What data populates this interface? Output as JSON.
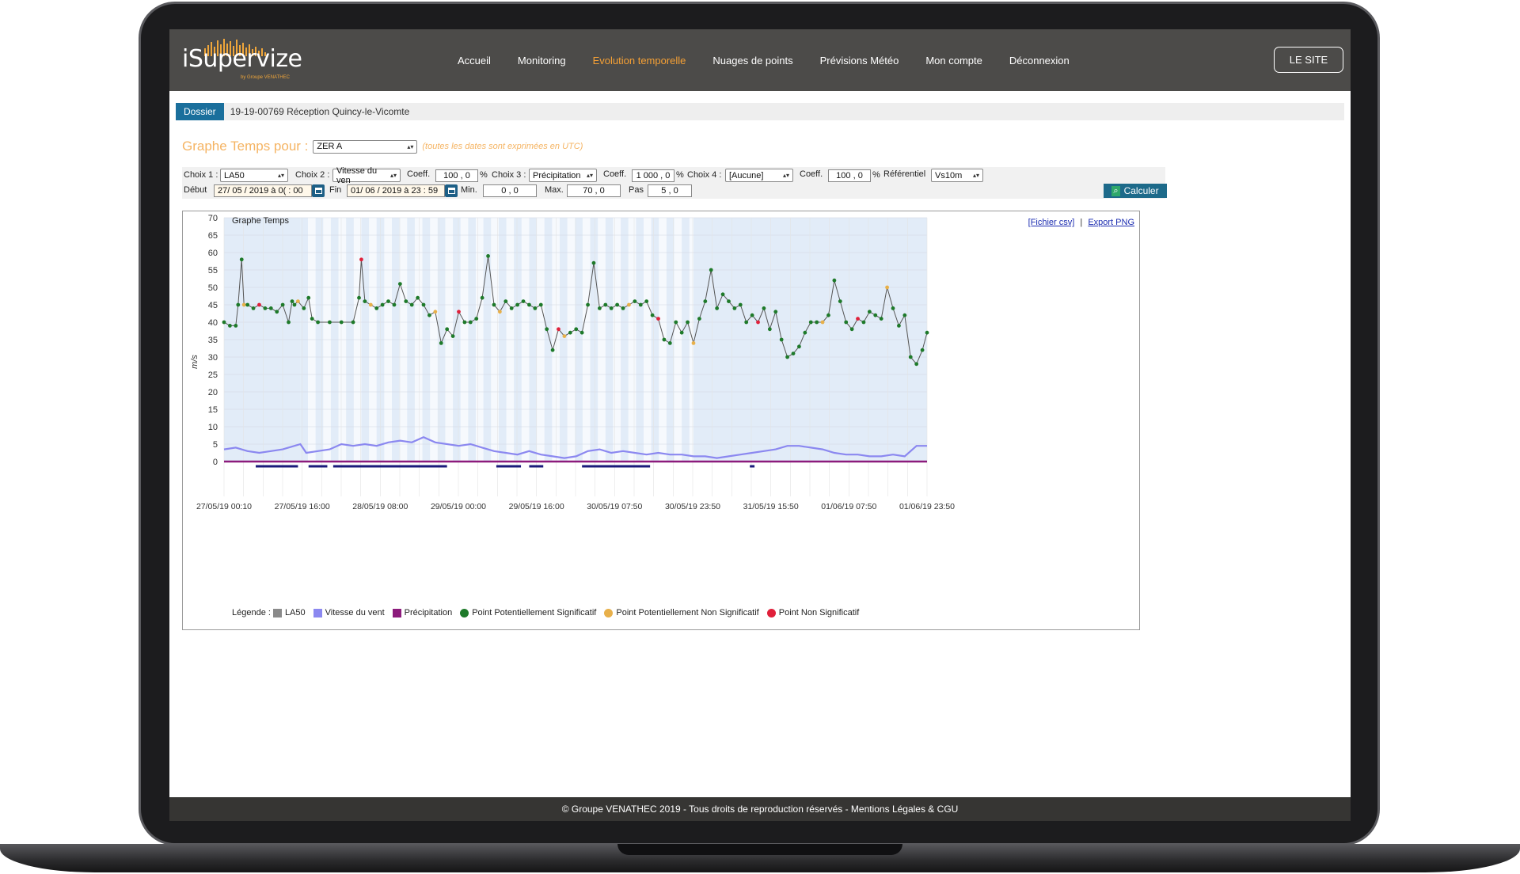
{
  "nav": {
    "logo": "iSupervize",
    "logo_sub": "by Groupe VENATHEC",
    "items": [
      {
        "label": "Accueil",
        "active": false
      },
      {
        "label": "Monitoring",
        "active": false
      },
      {
        "label": "Evolution temporelle",
        "active": true
      },
      {
        "label": "Nuages de points",
        "active": false
      },
      {
        "label": "Prévisions Météo",
        "active": false
      },
      {
        "label": "Mon compte",
        "active": false
      },
      {
        "label": "Déconnexion",
        "active": false
      }
    ],
    "site_button": "LE SITE",
    "accent": "#f5a035"
  },
  "dossier": {
    "label": "Dossier",
    "value": "19-19-00769 Réception Quincy-le-Vicomte"
  },
  "graph_header": {
    "title": "Graphe Temps pour :",
    "zone": "ZER A",
    "utc_note": "(toutes les dates sont exprimées en UTC)"
  },
  "controls": {
    "choix1_label": "Choix 1 :",
    "choix1": "LA50",
    "choix2_label": "Choix 2 :",
    "choix2": "Vitesse du ven",
    "coeff_label": "Coeff.",
    "coeff1": "100 , 0",
    "pct": "%",
    "choix3_label": "Choix 3 :",
    "choix3": "Précipitation",
    "coeff3": "1 000 , 0",
    "choix4_label": "Choix 4 :",
    "choix4": "[Aucune]",
    "coeff4": "100 , 0",
    "referentiel_label": "Référentiel",
    "referentiel": "Vs10m",
    "debut_label": "Début",
    "debut": "27/ 05 / 2019  à 0( : 00",
    "fin_label": "Fin",
    "fin": "01/ 06 / 2019  à 23 : 59",
    "min_label": "Min.",
    "min": "0 , 0",
    "max_label": "Max.",
    "max": "70 , 0",
    "pas_label": "Pas",
    "pas": "5 , 0",
    "calc_button": "Calculer"
  },
  "chart_links": {
    "csv": "[Fichier csv]",
    "sep": "|",
    "png": "Export PNG"
  },
  "legend": {
    "prefix": "Légende :",
    "items": [
      {
        "label": "LA50",
        "color": "#8a8a8a",
        "shape": "square"
      },
      {
        "label": "Vitesse du vent",
        "color": "#8b88f0",
        "shape": "square"
      },
      {
        "label": "Précipitation",
        "color": "#8c1b7c",
        "shape": "square"
      },
      {
        "label": "Point Potentiellement Significatif",
        "color": "#1e7a2a",
        "shape": "dot"
      },
      {
        "label": "Point Potentiellement Non Significatif",
        "color": "#e8b04a",
        "shape": "dot"
      },
      {
        "label": "Point Non Significatif",
        "color": "#e0203a",
        "shape": "dot"
      }
    ]
  },
  "chart_data": {
    "type": "line",
    "title": "Graphe Temps",
    "ylabel": "m/s",
    "ylim": [
      0,
      70
    ],
    "yticks": [
      0,
      5,
      10,
      15,
      20,
      25,
      30,
      35,
      40,
      45,
      50,
      55,
      60,
      65,
      70
    ],
    "xlim": [
      0,
      5.99
    ],
    "x_unit": "days from 27/05/19 00:10",
    "xtick_labels": [
      "27/05/19 00:10",
      "27/05/19 16:00",
      "28/05/19 08:00",
      "29/05/19 00:00",
      "29/05/19 16:00",
      "30/05/19 07:50",
      "30/05/19 23:50",
      "31/05/19 15:50",
      "01/06/19 07:50",
      "01/06/19 23:50"
    ],
    "grid": true,
    "legend_position": "bottom",
    "night_bands": [
      [
        0,
        0.65
      ],
      [
        4.0,
        5.99
      ]
    ],
    "series": [
      {
        "name": "LA50",
        "color": "#555555",
        "x": [
          0,
          0.05,
          0.1,
          0.12,
          0.15,
          0.17,
          0.2,
          0.25,
          0.3,
          0.35,
          0.4,
          0.45,
          0.5,
          0.55,
          0.58,
          0.6,
          0.63,
          0.68,
          0.72,
          0.75,
          0.8,
          0.9,
          1.0,
          1.1,
          1.15,
          1.17,
          1.2,
          1.25,
          1.3,
          1.35,
          1.4,
          1.45,
          1.5,
          1.55,
          1.6,
          1.65,
          1.7,
          1.75,
          1.8,
          1.85,
          1.9,
          1.95,
          2.0,
          2.05,
          2.1,
          2.15,
          2.2,
          2.25,
          2.3,
          2.35,
          2.4,
          2.45,
          2.5,
          2.55,
          2.6,
          2.65,
          2.7,
          2.75,
          2.8,
          2.85,
          2.9,
          2.95,
          3.0,
          3.05,
          3.1,
          3.15,
          3.2,
          3.25,
          3.3,
          3.35,
          3.4,
          3.45,
          3.5,
          3.55,
          3.6,
          3.65,
          3.7,
          3.75,
          3.8,
          3.85,
          3.9,
          3.95,
          4.0,
          4.05,
          4.1,
          4.15,
          4.2,
          4.25,
          4.3,
          4.35,
          4.4,
          4.45,
          4.5,
          4.55,
          4.6,
          4.65,
          4.7,
          4.75,
          4.8,
          4.85,
          4.9,
          4.95,
          5.0,
          5.05,
          5.1,
          5.15,
          5.2,
          5.25,
          5.3,
          5.35,
          5.4,
          5.45,
          5.5,
          5.55,
          5.6,
          5.65,
          5.7,
          5.75,
          5.8,
          5.85,
          5.9,
          5.95,
          5.99
        ],
        "values": [
          40,
          39,
          39,
          45,
          58,
          45,
          45,
          44,
          45,
          44,
          44,
          43,
          45,
          40,
          46,
          45,
          46,
          44,
          47,
          41,
          40,
          40,
          40,
          40,
          47,
          58,
          46,
          45,
          44,
          45,
          46,
          45,
          51,
          46,
          45,
          47,
          45,
          42,
          43,
          34,
          38,
          36,
          43,
          40,
          40,
          41,
          47,
          59,
          45,
          43,
          46,
          44,
          45,
          46,
          45,
          44,
          45,
          38,
          32,
          38,
          36,
          37,
          38,
          37,
          45,
          57,
          44,
          45,
          44,
          45,
          44,
          45,
          46,
          45,
          46,
          42,
          41,
          35,
          34,
          40,
          37,
          40,
          34,
          41,
          46,
          55,
          44,
          48,
          46,
          44,
          45,
          40,
          42,
          40,
          44,
          38,
          43,
          35,
          30,
          31,
          33,
          37,
          40,
          40,
          40,
          42,
          52,
          46,
          40,
          38,
          41,
          40,
          43,
          42,
          41,
          50,
          44,
          39,
          42,
          30,
          28,
          32,
          37
        ]
      },
      {
        "name": "Vitesse du vent",
        "color": "#8b88f0",
        "x": [
          0,
          0.1,
          0.2,
          0.3,
          0.4,
          0.5,
          0.6,
          0.65,
          0.7,
          0.8,
          0.9,
          1.0,
          1.1,
          1.2,
          1.3,
          1.4,
          1.5,
          1.6,
          1.7,
          1.8,
          1.9,
          2.0,
          2.1,
          2.2,
          2.3,
          2.4,
          2.5,
          2.6,
          2.7,
          2.8,
          2.9,
          3.0,
          3.1,
          3.2,
          3.3,
          3.4,
          3.5,
          3.6,
          3.7,
          3.8,
          3.9,
          4.0,
          4.1,
          4.2,
          4.3,
          4.4,
          4.5,
          4.6,
          4.7,
          4.8,
          4.9,
          5.0,
          5.1,
          5.2,
          5.3,
          5.4,
          5.5,
          5.6,
          5.7,
          5.8,
          5.9,
          5.99
        ],
        "values": [
          3.5,
          4.0,
          3.0,
          2.5,
          3.0,
          3.5,
          4.5,
          5.0,
          2.5,
          3.0,
          3.5,
          5.0,
          4.5,
          5.0,
          4.5,
          5.5,
          6.0,
          5.5,
          7.0,
          5.5,
          5.0,
          4.5,
          5.0,
          4.0,
          3.0,
          2.5,
          2.0,
          3.0,
          2.0,
          1.5,
          1.0,
          1.5,
          3.0,
          3.5,
          2.5,
          3.0,
          2.5,
          2.0,
          2.5,
          2.0,
          2.0,
          1.5,
          1.5,
          1.0,
          1.5,
          2.0,
          2.5,
          3.0,
          3.5,
          4.5,
          4.5,
          4.0,
          3.5,
          2.5,
          2.0,
          2.0,
          1.5,
          1.5,
          2.0,
          1.5,
          4.5,
          4.5
        ]
      },
      {
        "name": "Précipitation",
        "color": "#8c1b7c",
        "x": [
          0,
          5.99
        ],
        "values": [
          0,
          0
        ]
      }
    ],
    "precipitation_events": [
      [
        0.27,
        0.63
      ],
      [
        0.72,
        0.88
      ],
      [
        0.93,
        1.9
      ],
      [
        2.32,
        2.53
      ],
      [
        2.6,
        2.72
      ],
      [
        3.05,
        3.63
      ],
      [
        4.48,
        4.52
      ]
    ]
  },
  "footer": "© Groupe VENATHEC 2019 - Tous droits de reproduction réservés - Mentions Légales & CGU"
}
